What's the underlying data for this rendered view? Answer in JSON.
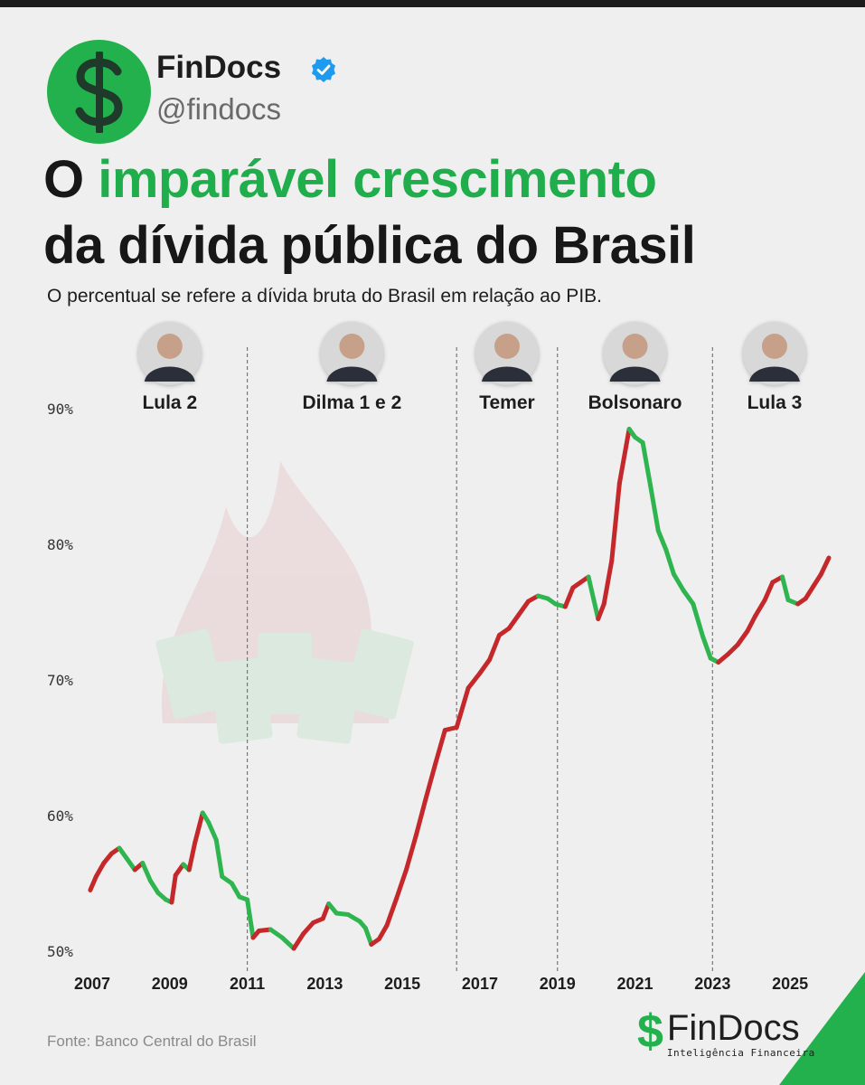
{
  "header": {
    "brand_name": "FinDocs",
    "handle": "@findocs",
    "verified_icon": "verified-check-icon",
    "logo_icon": "dollar-sign-icon",
    "title_line1_prefix": "O",
    "title_line1_highlight": "imparável crescimento",
    "title_line2": "da dívida pública do Brasil",
    "subtitle": "O percentual se refere a dívida bruta do Brasil em relação ao PIB."
  },
  "colors": {
    "brand_green": "#22b14c",
    "rising": "#c4282b",
    "falling": "#2fb54f",
    "text": "#171717"
  },
  "chart_data": {
    "type": "line",
    "title": "",
    "xlabel": "",
    "ylabel": "",
    "x_ticks": [
      "2007",
      "2009",
      "2011",
      "2013",
      "2015",
      "2017",
      "2019",
      "2021",
      "2023",
      "2025"
    ],
    "y_ticks": [
      "50%",
      "60%",
      "70%",
      "80%",
      "90%"
    ],
    "xlim": [
      2007,
      2026.2
    ],
    "ylim": [
      48.5,
      92
    ],
    "grid": false,
    "legend": "none",
    "color_rule": "red when rising, green when falling",
    "periods": [
      {
        "name": "Lula 2",
        "start": 2007,
        "end": 2011,
        "avatar_icon": "lula-portrait-icon"
      },
      {
        "name": "Dilma 1 e 2",
        "start": 2011,
        "end": 2016.4,
        "avatar_icon": "dilma-portrait-icon"
      },
      {
        "name": "Temer",
        "start": 2016.4,
        "end": 2019,
        "avatar_icon": "temer-portrait-icon"
      },
      {
        "name": "Bolsonaro",
        "start": 2019,
        "end": 2023,
        "avatar_icon": "bolsonaro-portrait-icon"
      },
      {
        "name": "Lula 3",
        "start": 2023,
        "end": 2026.2,
        "avatar_icon": "lula-portrait-icon"
      }
    ],
    "period_dividers": [
      2011,
      2016.4,
      2019,
      2023
    ],
    "series": [
      {
        "values": [
          [
            2006.95,
            54.5
          ],
          [
            2007.1,
            55.5
          ],
          [
            2007.3,
            56.5
          ],
          [
            2007.5,
            57.2
          ],
          [
            2007.7,
            57.6
          ],
          [
            2007.9,
            56.8
          ],
          [
            2008.1,
            56.0
          ],
          [
            2008.3,
            56.5
          ],
          [
            2008.5,
            55.2
          ],
          [
            2008.7,
            54.3
          ],
          [
            2008.9,
            53.8
          ],
          [
            2009.05,
            53.6
          ],
          [
            2009.15,
            55.6
          ],
          [
            2009.35,
            56.4
          ],
          [
            2009.5,
            56.0
          ],
          [
            2009.65,
            58.0
          ],
          [
            2009.85,
            60.2
          ],
          [
            2010.0,
            59.5
          ],
          [
            2010.2,
            58.2
          ],
          [
            2010.35,
            55.5
          ],
          [
            2010.6,
            55.0
          ],
          [
            2010.8,
            54.0
          ],
          [
            2011.0,
            53.8
          ],
          [
            2011.15,
            51.0
          ],
          [
            2011.3,
            51.5
          ],
          [
            2011.6,
            51.6
          ],
          [
            2011.9,
            51.0
          ],
          [
            2012.2,
            50.2
          ],
          [
            2012.45,
            51.3
          ],
          [
            2012.7,
            52.1
          ],
          [
            2012.95,
            52.4
          ],
          [
            2013.1,
            53.5
          ],
          [
            2013.3,
            52.8
          ],
          [
            2013.6,
            52.7
          ],
          [
            2013.9,
            52.2
          ],
          [
            2014.05,
            51.7
          ],
          [
            2014.2,
            50.5
          ],
          [
            2014.4,
            50.9
          ],
          [
            2014.6,
            51.9
          ],
          [
            2014.85,
            53.9
          ],
          [
            2015.1,
            56.0
          ],
          [
            2015.35,
            58.5
          ],
          [
            2015.6,
            61.2
          ],
          [
            2015.85,
            63.8
          ],
          [
            2016.1,
            66.3
          ],
          [
            2016.4,
            66.5
          ],
          [
            2016.7,
            69.4
          ],
          [
            2017.0,
            70.5
          ],
          [
            2017.25,
            71.5
          ],
          [
            2017.5,
            73.3
          ],
          [
            2017.75,
            73.8
          ],
          [
            2018.0,
            74.8
          ],
          [
            2018.25,
            75.8
          ],
          [
            2018.5,
            76.2
          ],
          [
            2018.75,
            76.0
          ],
          [
            2018.95,
            75.6
          ],
          [
            2019.2,
            75.4
          ],
          [
            2019.4,
            76.8
          ],
          [
            2019.6,
            77.2
          ],
          [
            2019.8,
            77.6
          ],
          [
            2020.05,
            74.5
          ],
          [
            2020.2,
            75.6
          ],
          [
            2020.4,
            78.8
          ],
          [
            2020.6,
            84.5
          ],
          [
            2020.85,
            88.5
          ],
          [
            2021.0,
            87.9
          ],
          [
            2021.2,
            87.5
          ],
          [
            2021.4,
            84.3
          ],
          [
            2021.6,
            81.0
          ],
          [
            2021.8,
            79.6
          ],
          [
            2022.0,
            77.8
          ],
          [
            2022.25,
            76.6
          ],
          [
            2022.5,
            75.6
          ],
          [
            2022.75,
            73.2
          ],
          [
            2022.95,
            71.6
          ],
          [
            2023.15,
            71.3
          ],
          [
            2023.4,
            71.9
          ],
          [
            2023.65,
            72.6
          ],
          [
            2023.9,
            73.6
          ],
          [
            2024.1,
            74.7
          ],
          [
            2024.35,
            75.9
          ],
          [
            2024.55,
            77.2
          ],
          [
            2024.8,
            77.6
          ],
          [
            2024.95,
            75.9
          ],
          [
            2025.2,
            75.6
          ],
          [
            2025.4,
            76.0
          ],
          [
            2025.6,
            76.9
          ],
          [
            2025.8,
            77.8
          ],
          [
            2026.0,
            79.0
          ]
        ]
      }
    ]
  },
  "footer": {
    "source": "Fonte: Banco Central do Brasil",
    "logo_icon": "dollar-sign-icon",
    "logo_name": "FinDocs",
    "logo_tagline": "Inteligência Financeira"
  }
}
